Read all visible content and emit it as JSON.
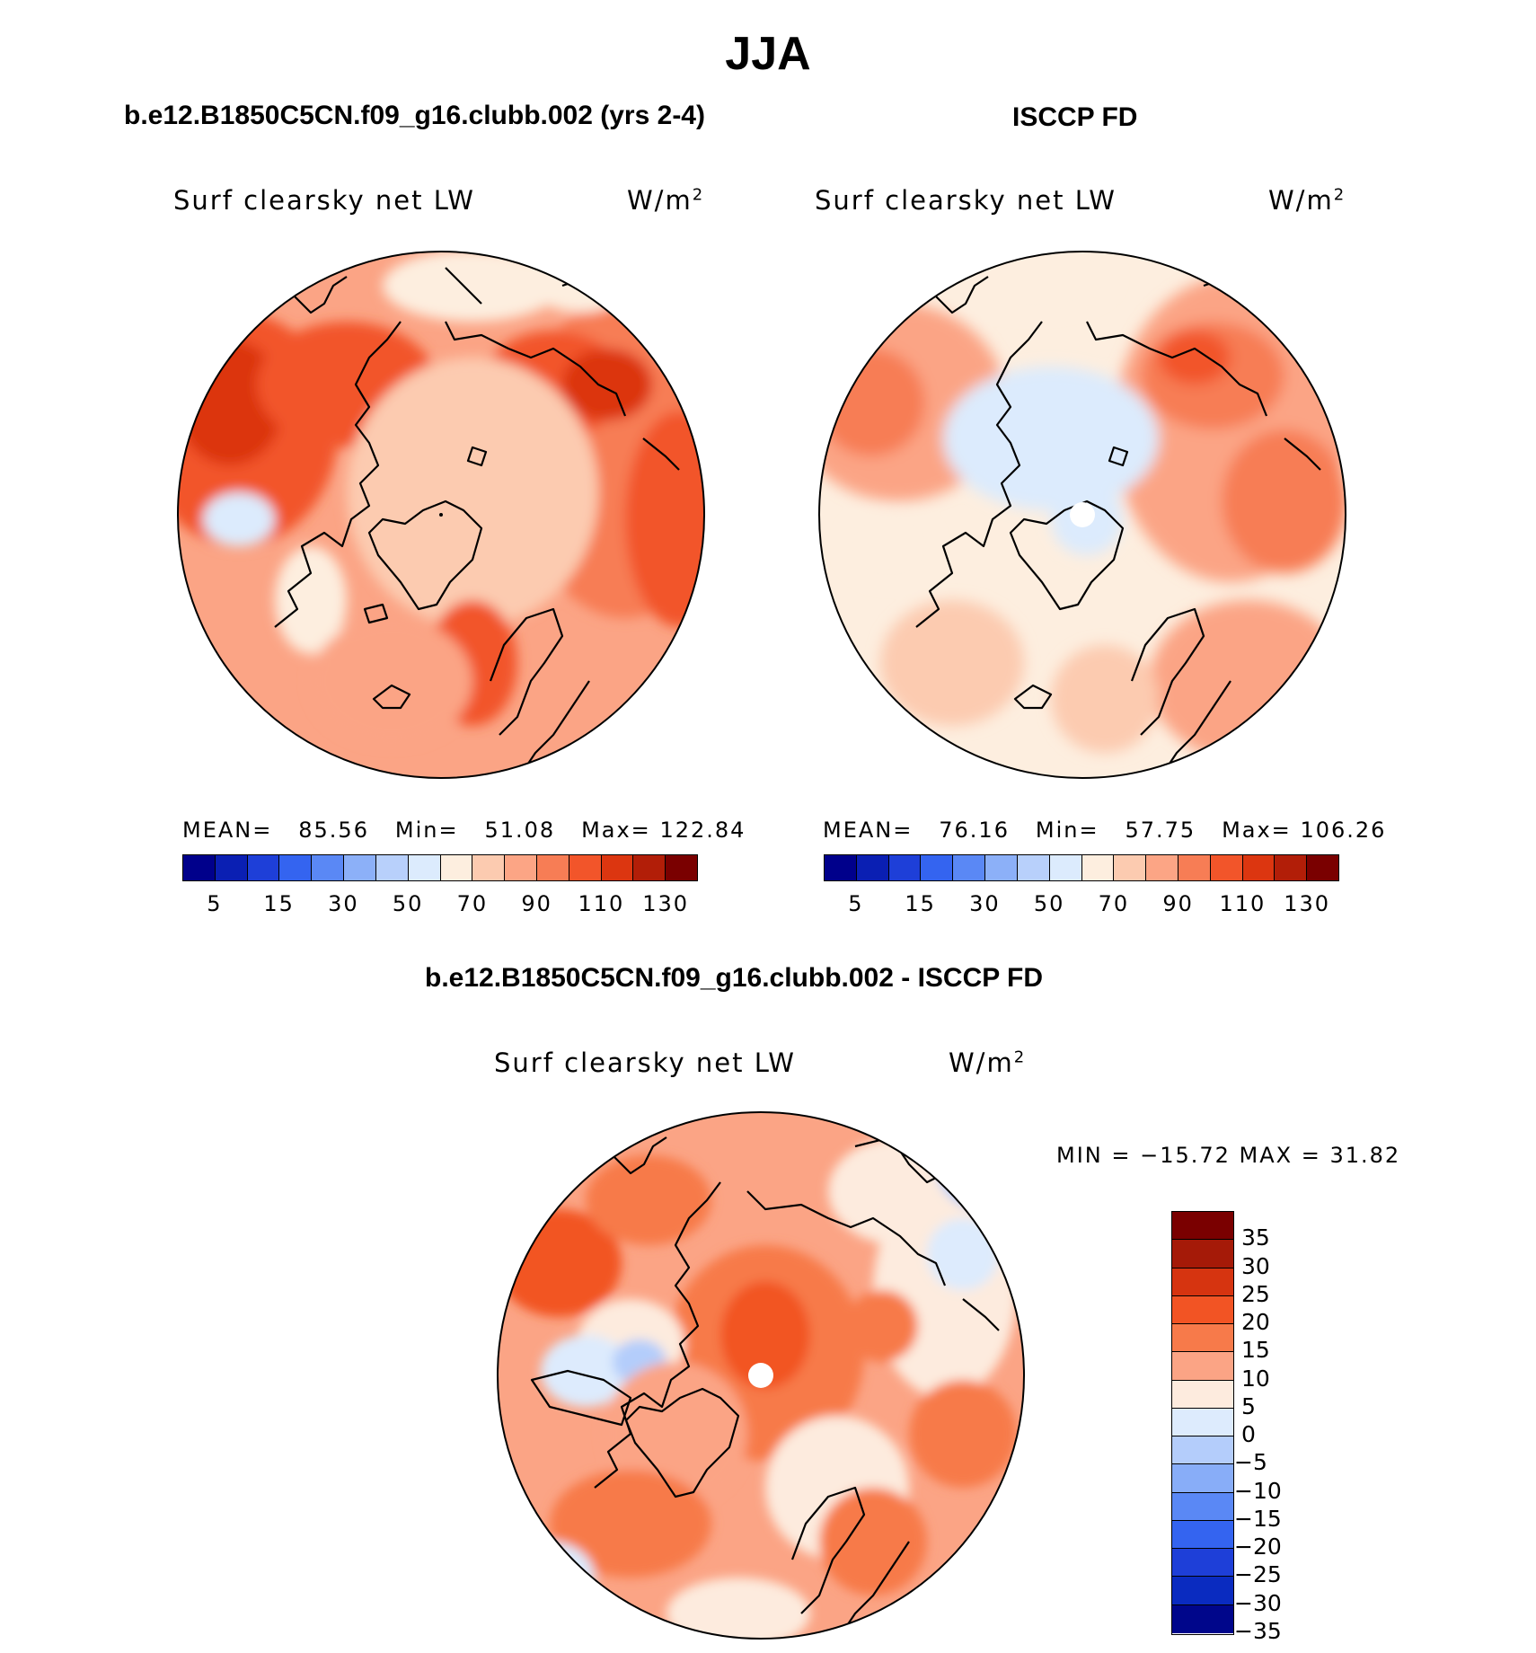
{
  "title": "JJA",
  "panels": {
    "model": {
      "heading": "b.e12.B1850C5CN.f09_g16.clubb.002 (yrs 2-4)",
      "variable": "Surf clearsky net LW",
      "units": "W/m",
      "units_exp": "2",
      "mean_label": "MEAN=",
      "mean": "85.56",
      "min_label": "Min=",
      "min": "51.08",
      "max_label": "Max=",
      "max": "122.84"
    },
    "obs": {
      "heading": "ISCCP FD",
      "variable": "Surf clearsky net LW",
      "units": "W/m",
      "units_exp": "2",
      "mean_label": "MEAN=",
      "mean": "76.16",
      "min_label": "Min=",
      "min": "57.75",
      "max_label": "Max=",
      "max": "106.26"
    },
    "diff": {
      "heading": "b.e12.B1850C5CN.f09_g16.clubb.002 - ISCCP FD",
      "variable": "Surf clearsky net LW",
      "units": "W/m",
      "units_exp": "2",
      "minmax_text": "MIN = −15.72 MAX =   31.82"
    }
  },
  "colorbar_main": {
    "colors": [
      "#00008b",
      "#0a1fb3",
      "#1e3fd8",
      "#3464f0",
      "#5a88f5",
      "#8cb0f8",
      "#b8d0fb",
      "#dcebfd",
      "#fdeedf",
      "#fccbb0",
      "#fca585",
      "#f77d55",
      "#f2552a",
      "#dc3610",
      "#b21e08",
      "#7a0000"
    ],
    "tick_labels": [
      "5",
      "15",
      "30",
      "50",
      "70",
      "90",
      "110",
      "130"
    ]
  },
  "colorbar_diff": {
    "colors": [
      "#7a0000",
      "#a51a08",
      "#d63410",
      "#f25424",
      "#f77a4a",
      "#fba485",
      "#fdebde",
      "#ddebfd",
      "#b4cdfb",
      "#88adf8",
      "#5a88f5",
      "#3464f0",
      "#1e3fd8",
      "#0a2bc0",
      "#00068b"
    ],
    "tick_labels": [
      "35",
      "30",
      "25",
      "20",
      "15",
      "10",
      "5",
      "0",
      "−5",
      "−10",
      "−15",
      "−20",
      "−25",
      "−30",
      "−35"
    ]
  }
}
